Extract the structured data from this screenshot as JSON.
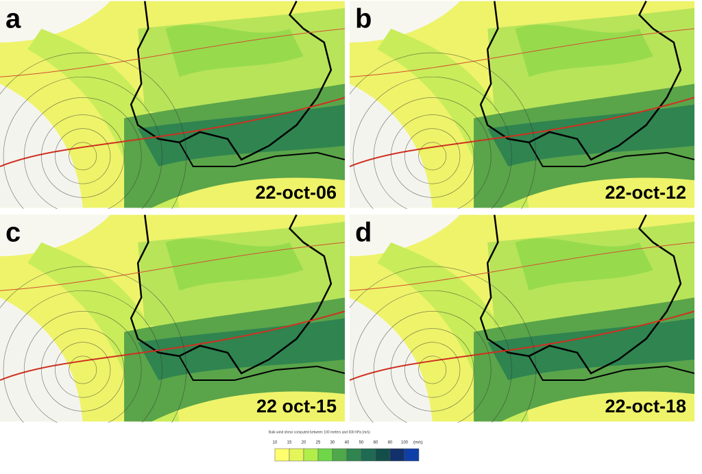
{
  "panels": [
    {
      "label": "a",
      "time": "22-oct-06"
    },
    {
      "label": "b",
      "time": "22-oct-12"
    },
    {
      "label": "c",
      "time": "22 oct-15"
    },
    {
      "label": "d",
      "time": "22-oct-18"
    }
  ],
  "colorbar": {
    "title": "Bulk wind shear computed between 100 meters and 500 hPa (m/s)",
    "ticks": [
      10,
      15,
      20,
      25,
      30,
      40,
      50,
      60,
      80,
      100
    ],
    "unit": "(m/s)",
    "colors": [
      "#ffff70",
      "#e4f55a",
      "#b2ee4a",
      "#6fd64a",
      "#4fa84a",
      "#2f8450",
      "#1f6a52",
      "#144e4a",
      "#12306a",
      "#0e3ea8"
    ]
  }
}
